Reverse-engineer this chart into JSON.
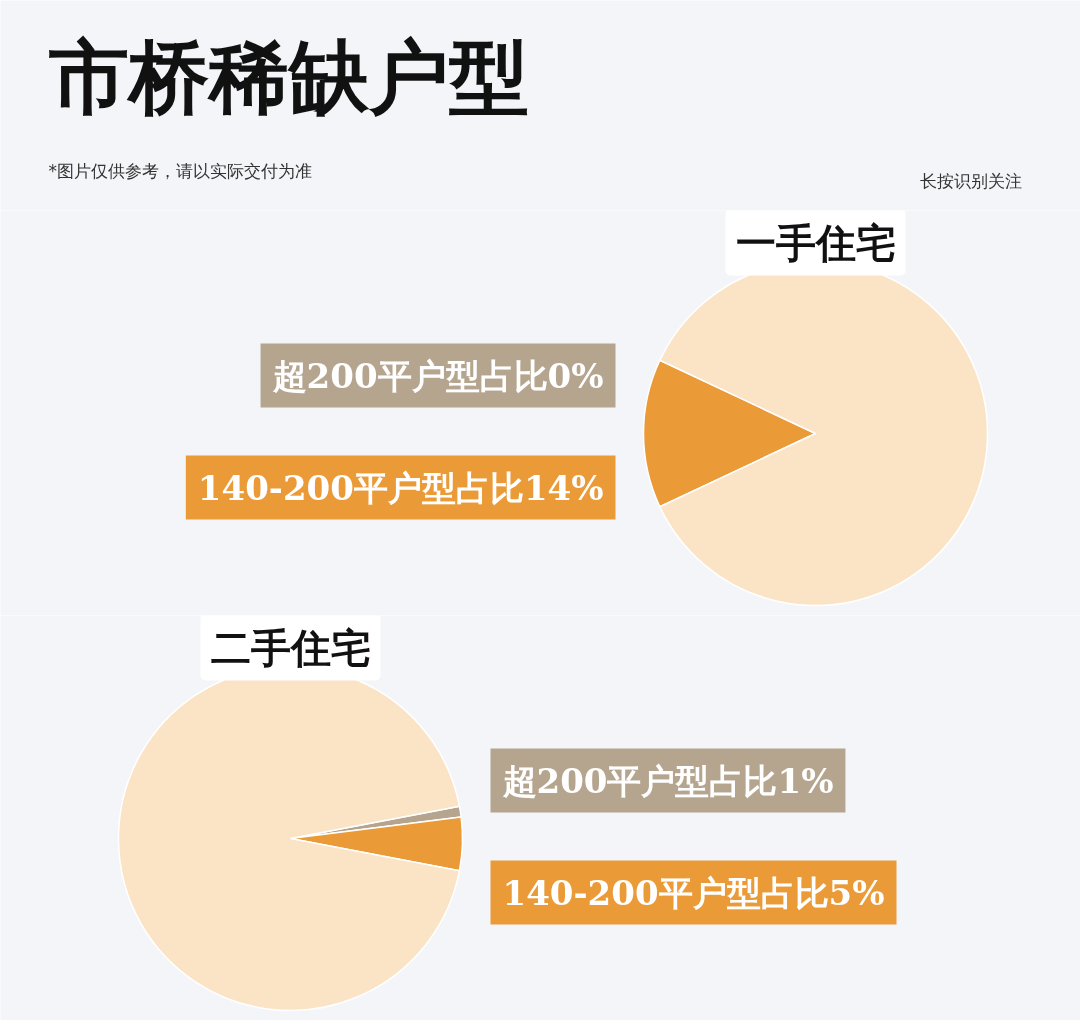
{
  "chart_data": [
    {
      "type": "other",
      "title": "市桥稀缺户型",
      "annotations": [
        "*图片仅供参考，请以实际交付为准",
        "长按识别关注"
      ]
    },
    {
      "type": "pie",
      "title": "一手住宅",
      "categories": [
        "超200平户型占比0%",
        "140-200平户型占比14%",
        null
      ],
      "values": [
        0,
        14,
        86
      ],
      "colors": [
        "#b5a58f",
        "#eb9a38",
        "#fbe3c6"
      ]
    },
    {
      "type": "pie",
      "title": "二手住宅",
      "categories": [
        "超200平户型占比1%",
        "140-200平户型占比5%",
        null
      ],
      "values": [
        1,
        5,
        94
      ],
      "colors": [
        "#b5a58f",
        "#eb9a38",
        "#fbe3c6"
      ]
    }
  ]
}
